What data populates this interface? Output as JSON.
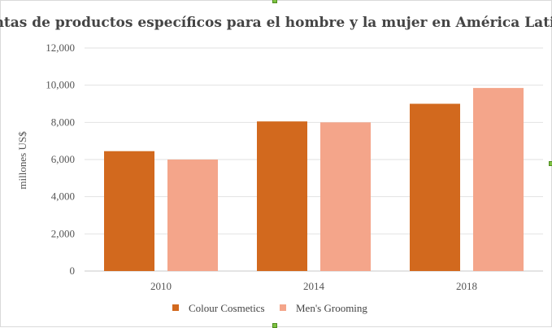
{
  "chart_data": {
    "type": "bar",
    "title": "Ventas de productos específicos para el hombre y la mujer en América Latina",
    "xlabel": "",
    "ylabel": "millones US$",
    "categories": [
      "2010",
      "2014",
      "2018"
    ],
    "series": [
      {
        "name": "Colour Cosmetics",
        "color": "#d2691e",
        "values": [
          6450,
          8050,
          9000
        ]
      },
      {
        "name": "Men's Grooming",
        "color": "#f4a58a",
        "values": [
          6000,
          8000,
          9850
        ]
      }
    ],
    "ylim": [
      0,
      12000
    ],
    "yticks": [
      "0",
      "2,000",
      "4,000",
      "6,000",
      "8,000",
      "10,000",
      "12,000"
    ],
    "ytick_values": [
      0,
      2000,
      4000,
      6000,
      8000,
      10000,
      12000
    ],
    "grid": true,
    "legend": "bottom"
  }
}
